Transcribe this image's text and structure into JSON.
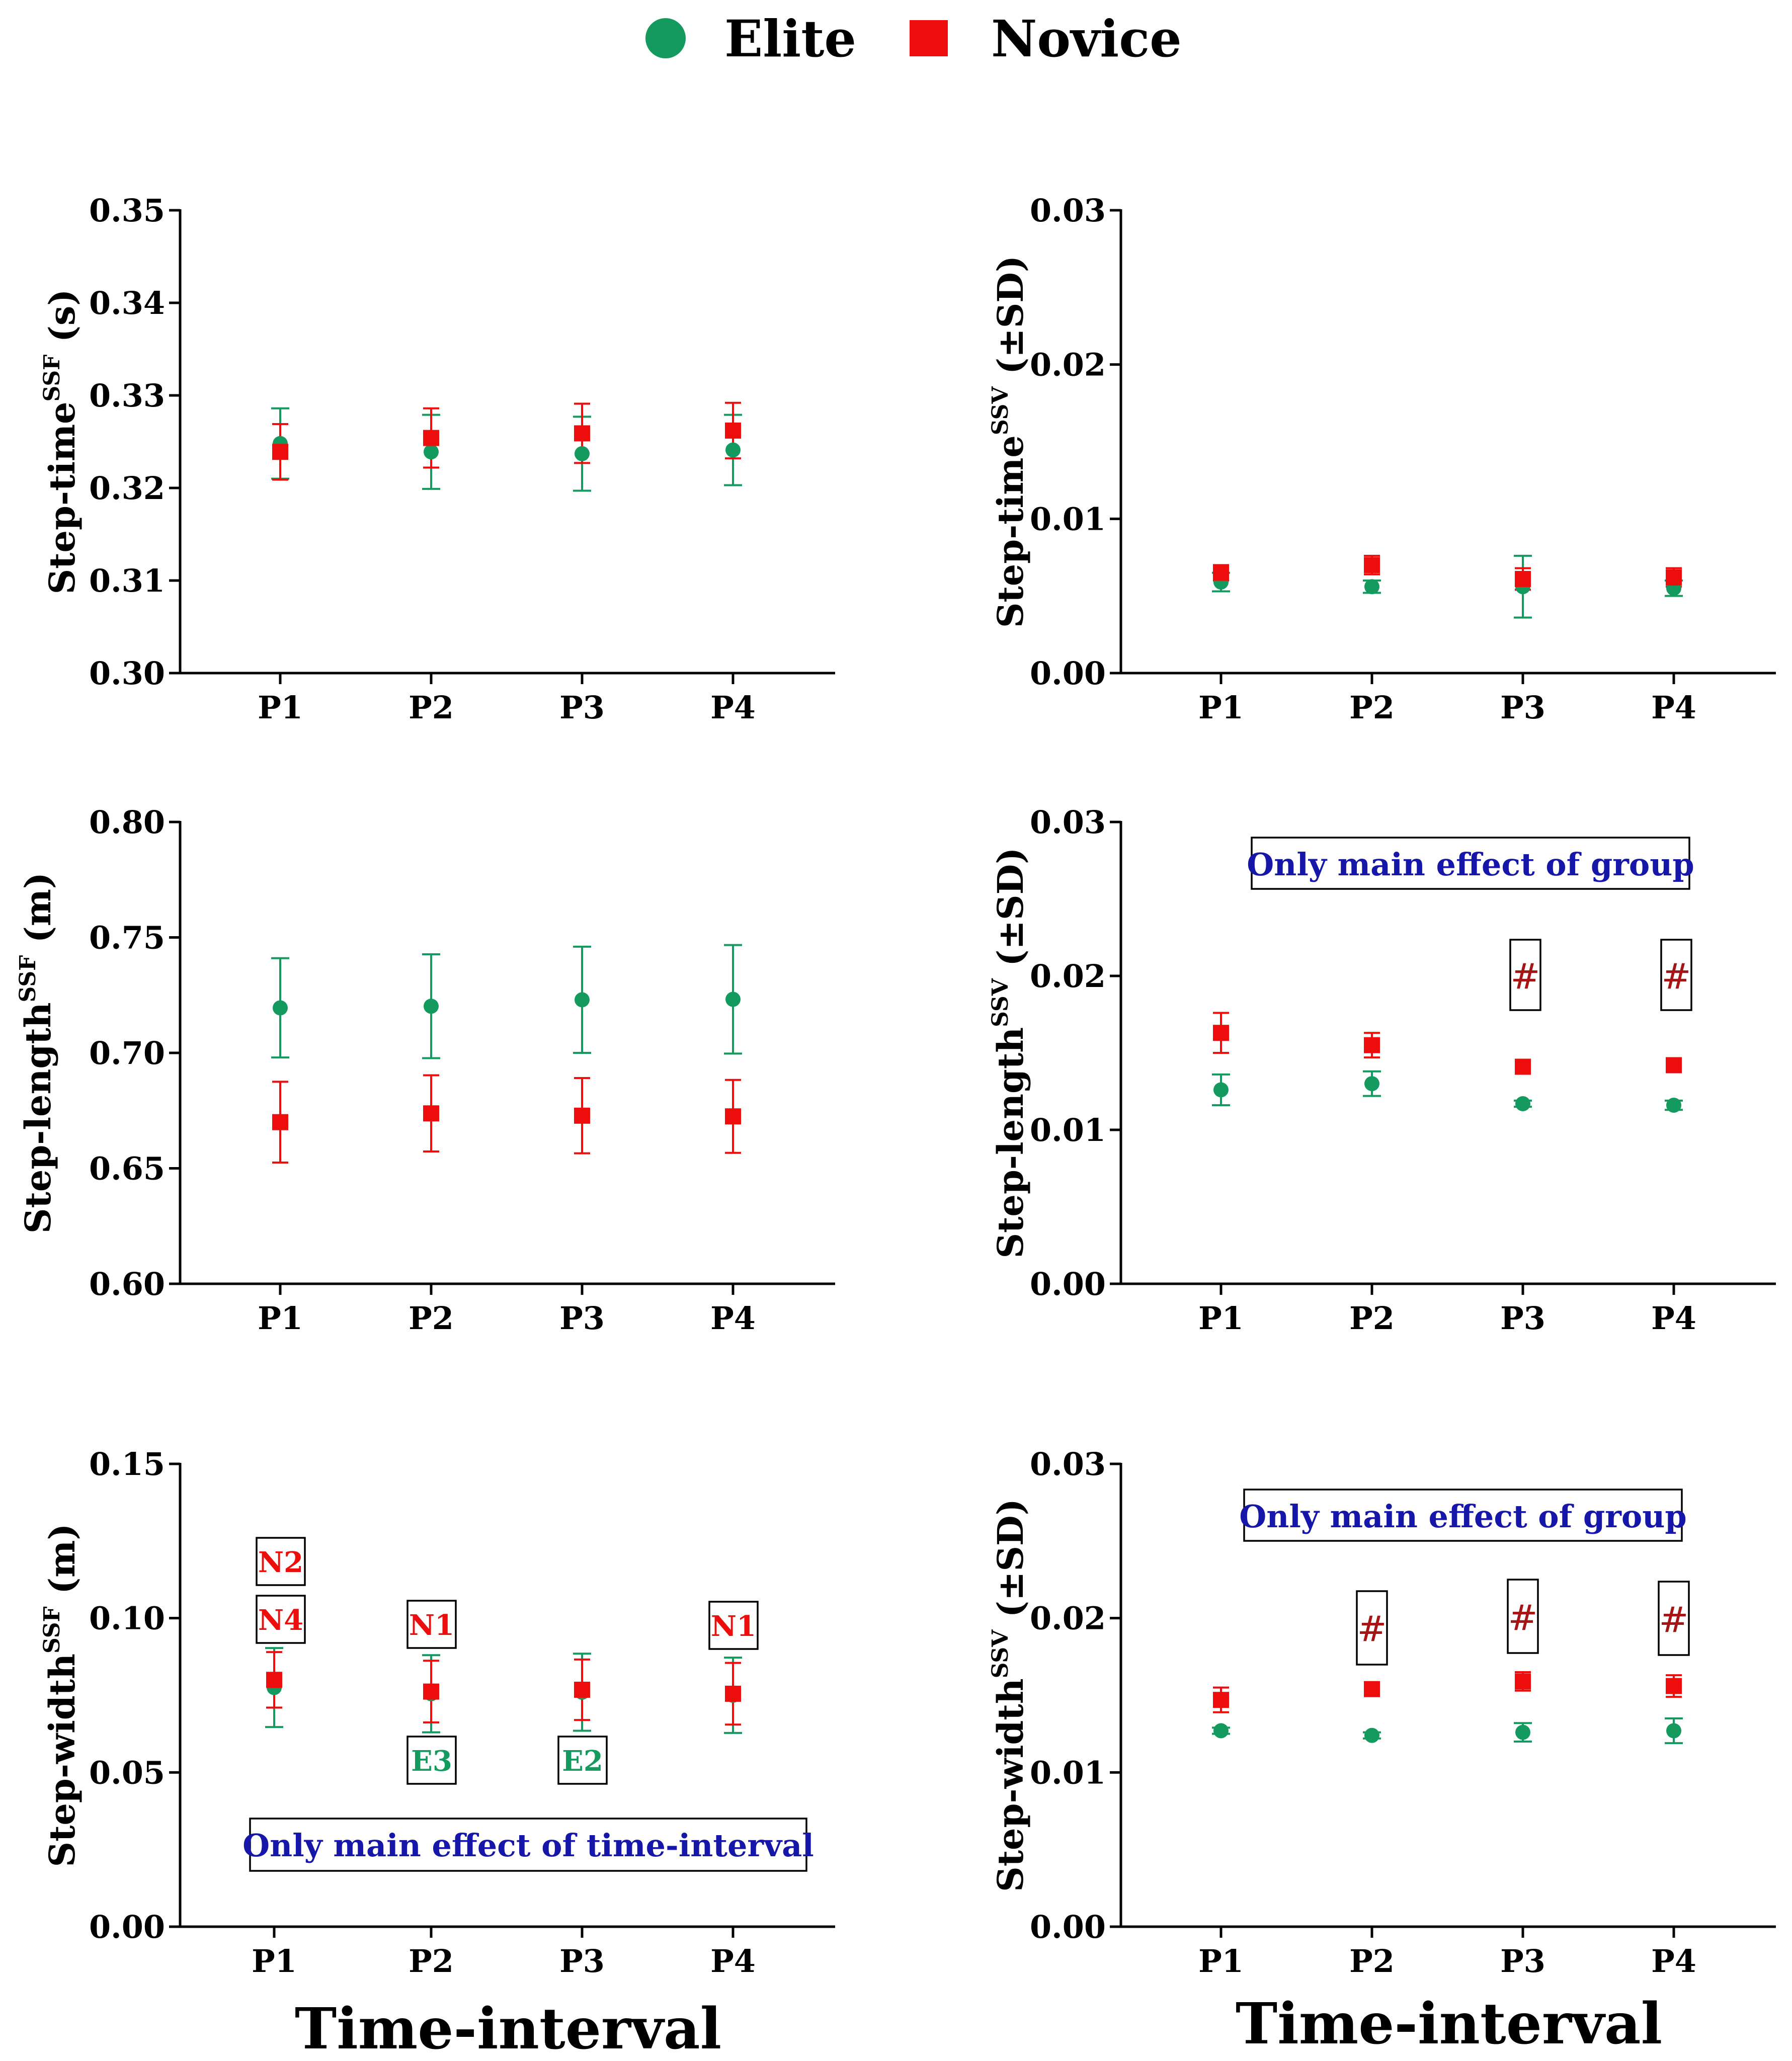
{
  "legend": {
    "elite_label": "Elite",
    "novice_label": "Novice"
  },
  "colors": {
    "elite": "#149a5e",
    "novice": "#ee0d0d",
    "annotation_blue": "#1616a8",
    "hash_red": "#a61515"
  },
  "xlabels": {
    "left": "Time-interval",
    "right": "Time-interval"
  },
  "chart_data": [
    {
      "id": "step-time-ssf",
      "type": "scatter",
      "ylabel": {
        "main": "Step-time",
        "sup": "SSF",
        "unit": " (s)"
      },
      "categories": [
        "P1",
        "P2",
        "P3",
        "P4"
      ],
      "ylim": [
        0.3,
        0.35
      ],
      "yticks": [
        "0.30",
        "0.31",
        "0.32",
        "0.33",
        "0.34",
        "0.35"
      ],
      "grid": false,
      "series": [
        {
          "name": "Elite",
          "values": [
            0.3248,
            0.3239,
            0.3237,
            0.3241
          ],
          "sd": [
            0.0038,
            0.004,
            0.004,
            0.0038
          ]
        },
        {
          "name": "Novice",
          "values": [
            0.3239,
            0.3254,
            0.3259,
            0.3262
          ],
          "sd": [
            0.003,
            0.0032,
            0.0032,
            0.003
          ]
        }
      ],
      "annotations": []
    },
    {
      "id": "step-time-ssv",
      "type": "scatter",
      "ylabel": {
        "main": "Step-time",
        "sup": "SSV",
        "unit": " (±SD)"
      },
      "categories": [
        "P1",
        "P2",
        "P3",
        "P4"
      ],
      "ylim": [
        0.0,
        0.03
      ],
      "yticks": [
        "0.00",
        "0.01",
        "0.02",
        "0.03"
      ],
      "grid": false,
      "series": [
        {
          "name": "Elite",
          "values": [
            0.0059,
            0.0056,
            0.0056,
            0.0055
          ],
          "sd": [
            0.0006,
            0.0004,
            0.002,
            0.0005
          ]
        },
        {
          "name": "Novice",
          "values": [
            0.0065,
            0.007,
            0.0061,
            0.0062
          ],
          "sd": [
            0.0005,
            0.0006,
            0.0007,
            0.0006
          ]
        }
      ],
      "annotations": []
    },
    {
      "id": "step-length-ssf",
      "type": "scatter",
      "ylabel": {
        "main": "Step-length",
        "sup": "SSF",
        "unit": " (m)"
      },
      "categories": [
        "P1",
        "P2",
        "P3",
        "P4"
      ],
      "ylim": [
        0.6,
        0.8
      ],
      "yticks": [
        "0.60",
        "0.65",
        "0.70",
        "0.75",
        "0.80"
      ],
      "grid": false,
      "series": [
        {
          "name": "Elite",
          "values": [
            0.7195,
            0.7202,
            0.723,
            0.7232
          ],
          "sd": [
            0.0215,
            0.0225,
            0.023,
            0.0235
          ]
        },
        {
          "name": "Novice",
          "values": [
            0.67,
            0.6738,
            0.6728,
            0.6725
          ],
          "sd": [
            0.0175,
            0.0165,
            0.0163,
            0.0158
          ]
        }
      ],
      "annotations": []
    },
    {
      "id": "step-length-ssv",
      "type": "scatter",
      "ylabel": {
        "main": "Step-length",
        "sup": "SSV",
        "unit": " (±SD)"
      },
      "categories": [
        "P1",
        "P2",
        "P3",
        "P4"
      ],
      "ylim": [
        0.0,
        0.03
      ],
      "yticks": [
        "0.00",
        "0.01",
        "0.02",
        "0.03"
      ],
      "grid": false,
      "series": [
        {
          "name": "Elite",
          "values": [
            0.0126,
            0.013,
            0.0117,
            0.0116
          ],
          "sd": [
            0.001,
            0.0008,
            0.0002,
            0.0003
          ]
        },
        {
          "name": "Novice",
          "values": [
            0.0163,
            0.0155,
            0.0141,
            0.0142
          ],
          "sd": [
            0.0013,
            0.0008,
            0.0002,
            0.0002
          ]
        }
      ],
      "annotations": [
        {
          "text": "Only main effect of group",
          "kind": "note"
        },
        {
          "text": "#",
          "kind": "hash",
          "category": "P3"
        },
        {
          "text": "#",
          "kind": "hash",
          "category": "P4"
        }
      ]
    },
    {
      "id": "step-width-ssf",
      "type": "scatter",
      "ylabel": {
        "main": "Step-width",
        "sup": "SSF",
        "unit": " (m)"
      },
      "categories": [
        "P1",
        "P2",
        "P3",
        "P4"
      ],
      "ylim": [
        0.0,
        0.15
      ],
      "yticks": [
        "0.00",
        "0.05",
        "0.10",
        "0.15"
      ],
      "grid": false,
      "series": [
        {
          "name": "Elite",
          "values": [
            0.0775,
            0.0755,
            0.076,
            0.075
          ],
          "sd": [
            0.0128,
            0.0125,
            0.0125,
            0.0122
          ]
        },
        {
          "name": "Novice",
          "values": [
            0.08,
            0.0762,
            0.0768,
            0.0755
          ],
          "sd": [
            0.009,
            0.01,
            0.0098,
            0.01
          ]
        }
      ],
      "annotations": [
        {
          "text": "Only main effect of time-interval",
          "kind": "note"
        },
        {
          "text": "N2",
          "kind": "novice",
          "category": "P1"
        },
        {
          "text": "N4",
          "kind": "novice",
          "category": "P1"
        },
        {
          "text": "N1",
          "kind": "novice",
          "category": "P2"
        },
        {
          "text": "N1",
          "kind": "novice",
          "category": "P4"
        },
        {
          "text": "E3",
          "kind": "elite",
          "category": "P2"
        },
        {
          "text": "E2",
          "kind": "elite",
          "category": "P3"
        }
      ]
    },
    {
      "id": "step-width-ssv",
      "type": "scatter",
      "ylabel": {
        "main": "Step-width",
        "sup": "SSV",
        "unit": " (±SD)"
      },
      "categories": [
        "P1",
        "P2",
        "P3",
        "P4"
      ],
      "ylim": [
        0.0,
        0.03
      ],
      "yticks": [
        "0.00",
        "0.01",
        "0.02",
        "0.03"
      ],
      "grid": false,
      "series": [
        {
          "name": "Elite",
          "values": [
            0.0127,
            0.0124,
            0.0126,
            0.0127
          ],
          "sd": [
            0.0002,
            0.0002,
            0.0006,
            0.0008
          ]
        },
        {
          "name": "Novice",
          "values": [
            0.0147,
            0.0154,
            0.0159,
            0.0156
          ],
          "sd": [
            0.0008,
            0.0002,
            0.0006,
            0.0007
          ]
        }
      ],
      "annotations": [
        {
          "text": "Only main effect of group",
          "kind": "note"
        },
        {
          "text": "#",
          "kind": "hash",
          "category": "P2"
        },
        {
          "text": "#",
          "kind": "hash",
          "category": "P3"
        },
        {
          "text": "#",
          "kind": "hash",
          "category": "P4"
        }
      ]
    }
  ]
}
